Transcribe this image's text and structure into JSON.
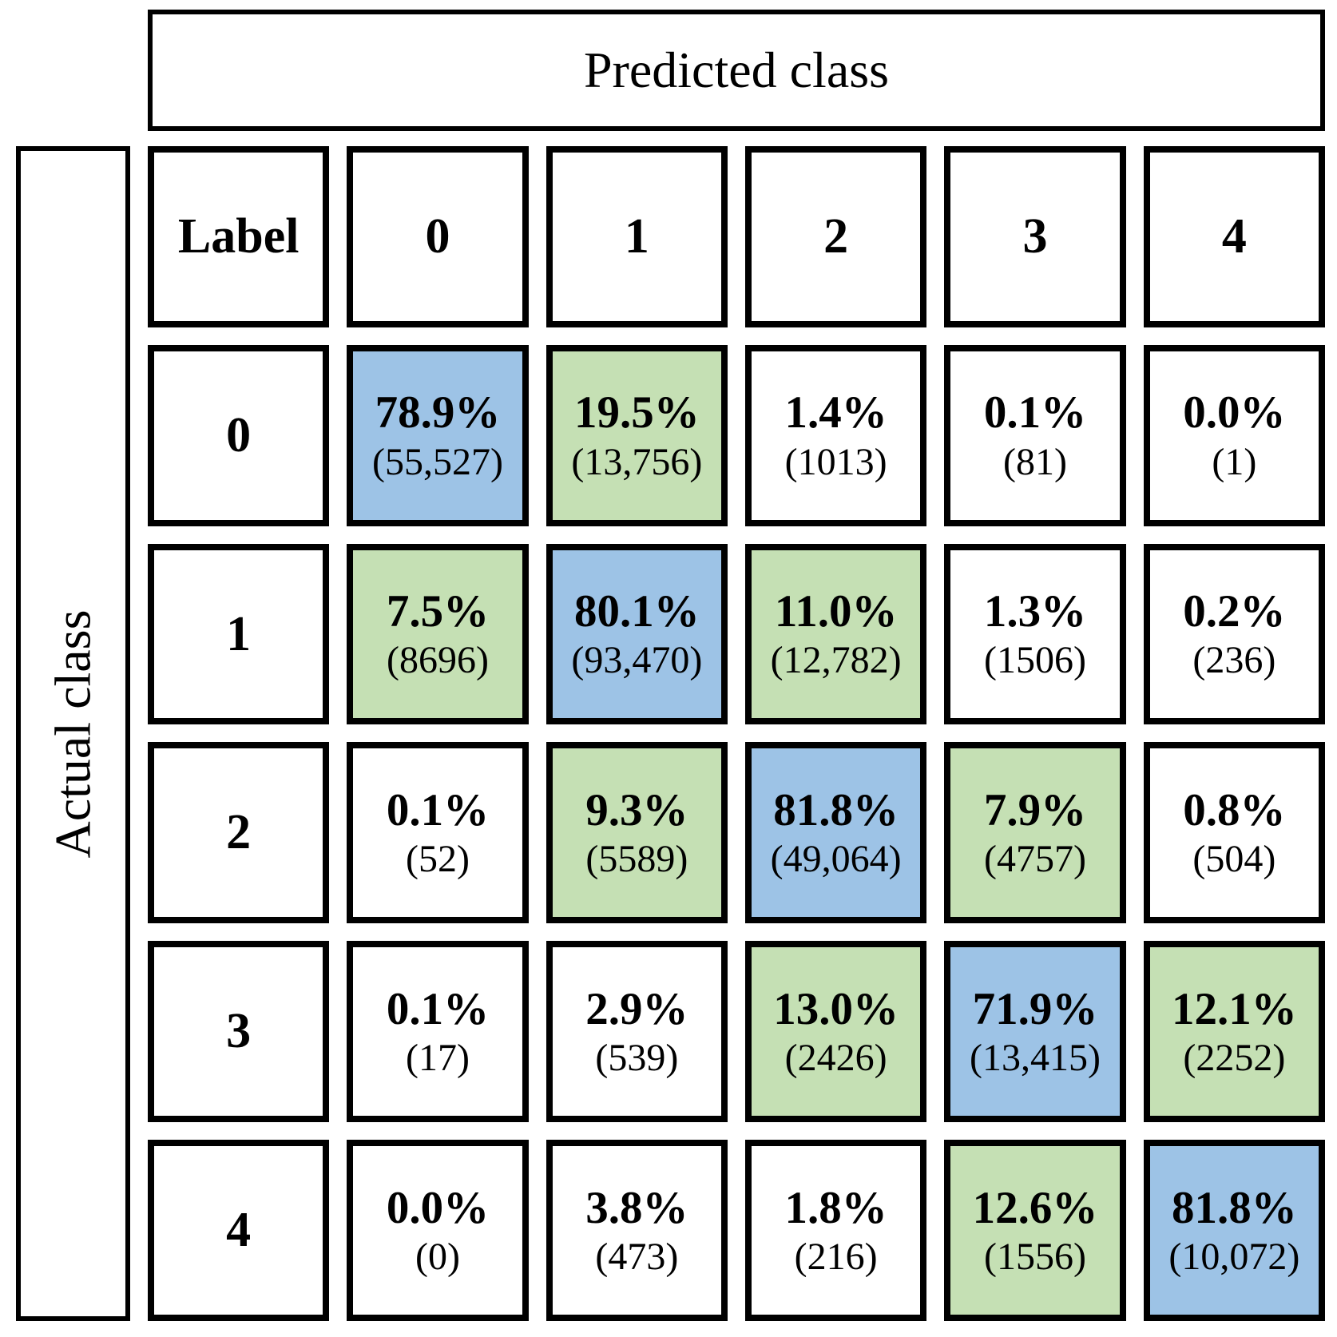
{
  "predicted_label": "Predicted class",
  "actual_label": "Actual class",
  "corner_label": "Label",
  "col_headers": [
    "0",
    "1",
    "2",
    "3",
    "4"
  ],
  "row_headers": [
    "0",
    "1",
    "2",
    "3",
    "4"
  ],
  "colors": {
    "diagonal_blue": "#9DC3E6",
    "adjacent_green": "#C5E0B4",
    "default_white": "#FFFFFF",
    "border_black": "#000000"
  },
  "cells": [
    [
      {
        "percent": "78.9%",
        "count": "(55,527)",
        "fill": "#9DC3E6"
      },
      {
        "percent": "19.5%",
        "count": "(13,756)",
        "fill": "#C5E0B4"
      },
      {
        "percent": "1.4%",
        "count": "(1013)",
        "fill": "#FFFFFF"
      },
      {
        "percent": "0.1%",
        "count": "(81)",
        "fill": "#FFFFFF"
      },
      {
        "percent": "0.0%",
        "count": "(1)",
        "fill": "#FFFFFF"
      }
    ],
    [
      {
        "percent": "7.5%",
        "count": "(8696)",
        "fill": "#C5E0B4"
      },
      {
        "percent": "80.1%",
        "count": "(93,470)",
        "fill": "#9DC3E6"
      },
      {
        "percent": "11.0%",
        "count": "(12,782)",
        "fill": "#C5E0B4"
      },
      {
        "percent": "1.3%",
        "count": "(1506)",
        "fill": "#FFFFFF"
      },
      {
        "percent": "0.2%",
        "count": "(236)",
        "fill": "#FFFFFF"
      }
    ],
    [
      {
        "percent": "0.1%",
        "count": "(52)",
        "fill": "#FFFFFF"
      },
      {
        "percent": "9.3%",
        "count": "(5589)",
        "fill": "#C5E0B4"
      },
      {
        "percent": "81.8%",
        "count": "(49,064)",
        "fill": "#9DC3E6"
      },
      {
        "percent": "7.9%",
        "count": "(4757)",
        "fill": "#C5E0B4"
      },
      {
        "percent": "0.8%",
        "count": "(504)",
        "fill": "#FFFFFF"
      }
    ],
    [
      {
        "percent": "0.1%",
        "count": "(17)",
        "fill": "#FFFFFF"
      },
      {
        "percent": "2.9%",
        "count": "(539)",
        "fill": "#FFFFFF"
      },
      {
        "percent": "13.0%",
        "count": "(2426)",
        "fill": "#C5E0B4"
      },
      {
        "percent": "71.9%",
        "count": "(13,415)",
        "fill": "#9DC3E6"
      },
      {
        "percent": "12.1%",
        "count": "(2252)",
        "fill": "#C5E0B4"
      }
    ],
    [
      {
        "percent": "0.0%",
        "count": "(0)",
        "fill": "#FFFFFF"
      },
      {
        "percent": "3.8%",
        "count": "(473)",
        "fill": "#FFFFFF"
      },
      {
        "percent": "1.8%",
        "count": "(216)",
        "fill": "#FFFFFF"
      },
      {
        "percent": "12.6%",
        "count": "(1556)",
        "fill": "#C5E0B4"
      },
      {
        "percent": "81.8%",
        "count": "(10,072)",
        "fill": "#9DC3E6"
      }
    ]
  ],
  "chart_data": {
    "type": "heatmap",
    "title": "Confusion matrix",
    "xlabel": "Predicted class",
    "ylabel": "Actual class",
    "x_categories": [
      "0",
      "1",
      "2",
      "3",
      "4"
    ],
    "y_categories": [
      "0",
      "1",
      "2",
      "3",
      "4"
    ],
    "percent_values": [
      [
        78.9,
        19.5,
        1.4,
        0.1,
        0.0
      ],
      [
        7.5,
        80.1,
        11.0,
        1.3,
        0.2
      ],
      [
        0.1,
        9.3,
        81.8,
        7.9,
        0.8
      ],
      [
        0.1,
        2.9,
        13.0,
        71.9,
        12.1
      ],
      [
        0.0,
        3.8,
        1.8,
        12.6,
        81.8
      ]
    ],
    "count_values": [
      [
        55527,
        13756,
        1013,
        81,
        1
      ],
      [
        8696,
        93470,
        12782,
        1506,
        236
      ],
      [
        52,
        5589,
        49064,
        4757,
        504
      ],
      [
        17,
        539,
        2426,
        13415,
        2252
      ],
      [
        0,
        473,
        216,
        1556,
        10072
      ]
    ],
    "legend_position": "none",
    "grid": false,
    "color_rule": "diagonal cells blue #9DC3E6, off-by-one cells green #C5E0B4, others white"
  }
}
